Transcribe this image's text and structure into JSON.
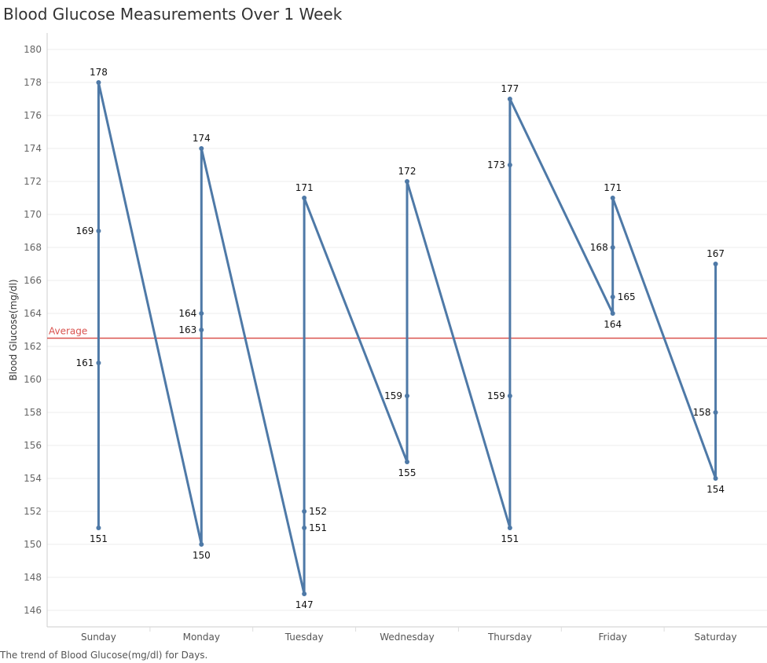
{
  "chart_data": {
    "type": "line",
    "title": "Blood Glucose Measurements Over 1 Week",
    "caption": "The trend of Blood Glucose(mg/dl) for Days.",
    "ylabel": "Blood Glucose(mg/dl)",
    "xlabel": "",
    "ylim": [
      145,
      181
    ],
    "yticks": [
      146,
      148,
      150,
      152,
      154,
      156,
      158,
      160,
      162,
      164,
      166,
      168,
      170,
      172,
      174,
      176,
      178,
      180
    ],
    "categories": [
      "Sunday",
      "Monday",
      "Tuesday",
      "Wednesday",
      "Thursday",
      "Friday",
      "Saturday"
    ],
    "series": [
      {
        "line_color": "#4e79a7",
        "points": [
          {
            "day": "Sunday",
            "value": 151,
            "label_side": "below"
          },
          {
            "day": "Sunday",
            "value": 161,
            "label_side": "left"
          },
          {
            "day": "Sunday",
            "value": 169,
            "label_side": "left"
          },
          {
            "day": "Sunday",
            "value": 178,
            "label_side": "above"
          },
          {
            "day": "Monday",
            "value": 150,
            "label_side": "below"
          },
          {
            "day": "Monday",
            "value": 163,
            "label_side": "left"
          },
          {
            "day": "Monday",
            "value": 164,
            "label_side": "left"
          },
          {
            "day": "Monday",
            "value": 174,
            "label_side": "above"
          },
          {
            "day": "Tuesday",
            "value": 147,
            "label_side": "below"
          },
          {
            "day": "Tuesday",
            "value": 151,
            "label_side": "right"
          },
          {
            "day": "Tuesday",
            "value": 152,
            "label_side": "right"
          },
          {
            "day": "Tuesday",
            "value": 171,
            "label_side": "above"
          },
          {
            "day": "Wednesday",
            "value": 155,
            "label_side": "below"
          },
          {
            "day": "Wednesday",
            "value": 159,
            "label_side": "left"
          },
          {
            "day": "Wednesday",
            "value": 172,
            "label_side": "above"
          },
          {
            "day": "Thursday",
            "value": 151,
            "label_side": "below"
          },
          {
            "day": "Thursday",
            "value": 159,
            "label_side": "left"
          },
          {
            "day": "Thursday",
            "value": 173,
            "label_side": "left"
          },
          {
            "day": "Thursday",
            "value": 177,
            "label_side": "above"
          },
          {
            "day": "Friday",
            "value": 164,
            "label_side": "below"
          },
          {
            "day": "Friday",
            "value": 165,
            "label_side": "right"
          },
          {
            "day": "Friday",
            "value": 168,
            "label_side": "left"
          },
          {
            "day": "Friday",
            "value": 171,
            "label_side": "above"
          },
          {
            "day": "Saturday",
            "value": 154,
            "label_side": "below"
          },
          {
            "day": "Saturday",
            "value": 158,
            "label_side": "left"
          },
          {
            "day": "Saturday",
            "value": 167,
            "label_side": "above"
          }
        ]
      }
    ],
    "reference_line": {
      "label": "Average",
      "value": 162.5,
      "color": "#d9534f"
    },
    "grid": true
  }
}
